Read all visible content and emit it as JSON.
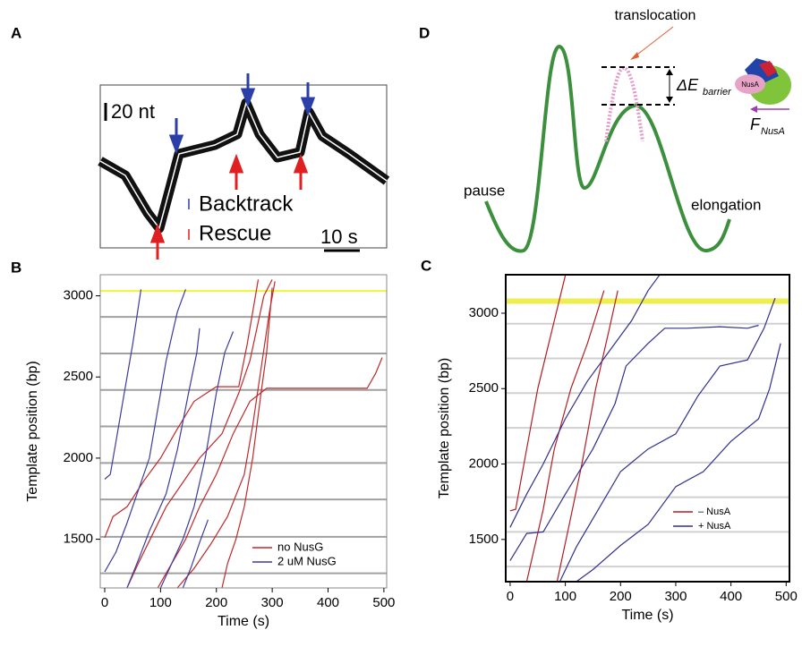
{
  "panel_labels": [
    "A",
    "B",
    "C",
    "D"
  ],
  "panel_a": {
    "scale_y": "20 nt",
    "scale_x": "10 s",
    "legend": [
      "Backtrack",
      "Rescue"
    ]
  },
  "panel_d": {
    "top": "translocation",
    "barrier": "ΔE",
    "barrier_sub": "barrier",
    "protein": "NusA",
    "force": "F",
    "force_sub": "NusA",
    "left": "pause",
    "right": "elongation"
  },
  "chart_data": [
    {
      "type": "line",
      "xlabel": "Time (s)",
      "ylabel": "Template position (bp)",
      "xlim": [
        -8,
        505
      ],
      "ylim": [
        1200,
        3130
      ],
      "xticks": [
        0,
        100,
        200,
        300,
        400,
        500
      ],
      "yticks": [
        1500,
        2000,
        2500,
        3000
      ],
      "hlines": {
        "values": [
          1290,
          1515,
          1745,
          1970,
          2195,
          2420,
          2645,
          2870
        ],
        "color": "#a0a0a0"
      },
      "highlight": {
        "value": 3030,
        "color": "#f2f23a"
      },
      "series": [
        {
          "name": "no NusG",
          "color": "#c0282a",
          "traces": [
            {
              "x": [
                0,
                15,
                40,
                70,
                100,
                130,
                160,
                200,
                240,
                255,
                275
              ],
              "y": [
                1510,
                1640,
                1700,
                1860,
                2000,
                2180,
                2350,
                2440,
                2440,
                2700,
                3100
              ]
            },
            {
              "x": [
                40,
                60,
                90,
                110,
                140,
                170,
                210,
                240,
                260,
                285,
                300
              ],
              "y": [
                1200,
                1350,
                1560,
                1700,
                1850,
                2000,
                2150,
                2400,
                2600,
                3000,
                3100
              ]
            },
            {
              "x": [
                95,
                120,
                145,
                170,
                200,
                230,
                260,
                290,
                350,
                420,
                470,
                485,
                497
              ],
              "y": [
                1200,
                1350,
                1500,
                1700,
                1900,
                2150,
                2350,
                2430,
                2430,
                2430,
                2430,
                2520,
                2620
              ]
            },
            {
              "x": [
                130,
                160,
                190,
                220,
                250,
                265,
                280,
                295,
                305
              ],
              "y": [
                1200,
                1320,
                1470,
                1640,
                1900,
                2200,
                2550,
                2900,
                3090
              ]
            },
            {
              "x": [
                210,
                220,
                235,
                250,
                265,
                280,
                290,
                300
              ],
              "y": [
                1200,
                1350,
                1500,
                1700,
                2000,
                2400,
                2650,
                3050
              ]
            }
          ]
        },
        {
          "name": "2 uM NusG",
          "color": "#3c3c9c",
          "traces": [
            {
              "x": [
                0,
                10,
                20,
                35,
                50,
                65
              ],
              "y": [
                1870,
                1900,
                2100,
                2400,
                2700,
                3040
              ]
            },
            {
              "x": [
                0,
                20,
                40,
                60,
                80,
                95,
                110,
                130,
                145
              ],
              "y": [
                1300,
                1420,
                1600,
                1800,
                2000,
                2300,
                2600,
                2900,
                3040
              ]
            },
            {
              "x": [
                40,
                60,
                80,
                110,
                130,
                150,
                165,
                170
              ],
              "y": [
                1200,
                1370,
                1550,
                1780,
                2050,
                2400,
                2650,
                2800
              ]
            },
            {
              "x": [
                100,
                120,
                140,
                160,
                180,
                200,
                215,
                230
              ],
              "y": [
                1200,
                1350,
                1500,
                1700,
                2000,
                2400,
                2650,
                2780
              ]
            },
            {
              "x": [
                140,
                155,
                170,
                185
              ],
              "y": [
                1200,
                1330,
                1480,
                1620
              ]
            }
          ]
        }
      ]
    },
    {
      "type": "line",
      "xlabel": "Time (s)",
      "ylabel": "Template position (bp)",
      "xlim": [
        -8,
        506
      ],
      "ylim": [
        1220,
        3255
      ],
      "xticks": [
        0,
        100,
        200,
        300,
        400,
        500
      ],
      "yticks": [
        1500,
        2000,
        2500,
        3000
      ],
      "hlines": {
        "values": [
          1320,
          1550,
          1780,
          2010,
          2240,
          2470,
          2700,
          2930
        ],
        "color": "#d0d0d0"
      },
      "highlight": {
        "value": 3080,
        "color": "#eeee50"
      },
      "series": [
        {
          "name": "– NusA",
          "color": "#b01e22",
          "traces": [
            {
              "x": [
                0,
                10,
                30,
                50,
                70,
                100
              ],
              "y": [
                1690,
                1700,
                2100,
                2500,
                2800,
                3250
              ]
            },
            {
              "x": [
                30,
                60,
                80,
                110,
                140,
                170
              ],
              "y": [
                1220,
                1700,
                2100,
                2500,
                2800,
                3150
              ]
            },
            {
              "x": [
                85,
                110,
                130,
                155,
                180,
                195
              ],
              "y": [
                1220,
                1650,
                2000,
                2500,
                2900,
                3150
              ]
            }
          ]
        },
        {
          "name": "+ NusA",
          "color": "#30308e",
          "traces": [
            {
              "x": [
                0,
                30,
                60,
                100,
                140,
                180,
                220,
                250,
                270
              ],
              "y": [
                1580,
                1800,
                2000,
                2300,
                2550,
                2750,
                2950,
                3150,
                3250
              ]
            },
            {
              "x": [
                0,
                30,
                60,
                100,
                150,
                190,
                210,
                250,
                280,
                320,
                380,
                430,
                450
              ],
              "y": [
                1360,
                1540,
                1550,
                1800,
                2100,
                2400,
                2650,
                2800,
                2900,
                2900,
                2910,
                2900,
                2920
              ]
            },
            {
              "x": [
                90,
                120,
                160,
                200,
                250,
                300,
                340,
                380,
                430,
                460,
                480
              ],
              "y": [
                1220,
                1450,
                1700,
                1950,
                2100,
                2200,
                2450,
                2650,
                2690,
                2900,
                3100
              ]
            },
            {
              "x": [
                120,
                150,
                200,
                250,
                300,
                350,
                400,
                450,
                470,
                490
              ],
              "y": [
                1220,
                1300,
                1460,
                1600,
                1850,
                1950,
                2150,
                2300,
                2500,
                2800
              ]
            }
          ]
        }
      ]
    }
  ]
}
